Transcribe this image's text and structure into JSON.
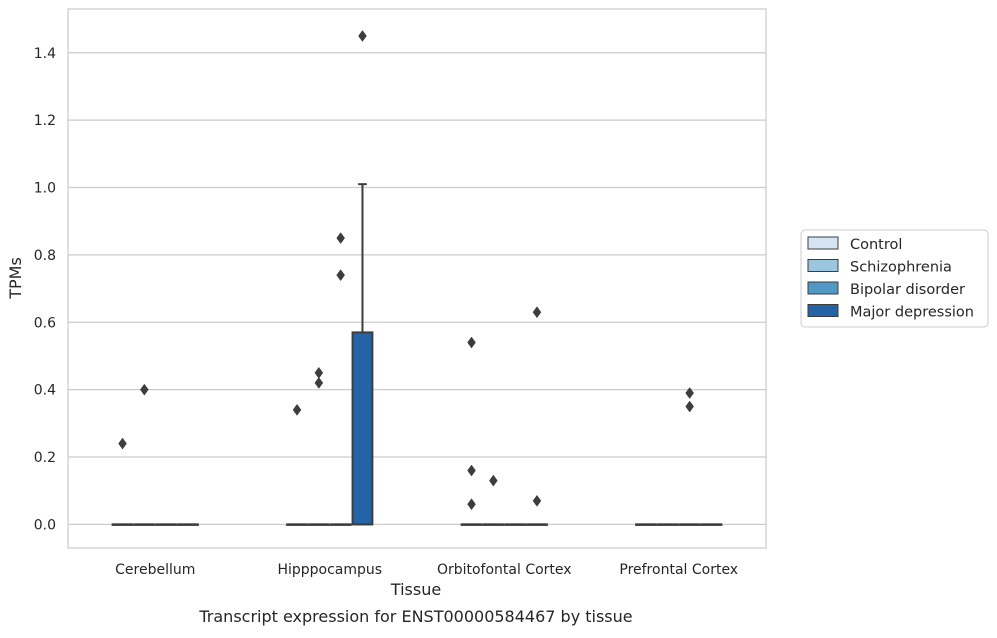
{
  "chart_data": {
    "type": "box",
    "xlabel": "Tissue",
    "ylabel": "TPMs",
    "caption": "Transcript expression for ENST00000584467 by tissue",
    "categories": [
      "Cerebellum",
      "Hipppocampus",
      "Orbitofontal Cortex",
      "Prefrontal Cortex"
    ],
    "ylim": [
      -0.07,
      1.53
    ],
    "yticks": [
      0.0,
      0.2,
      0.4,
      0.6,
      0.8,
      1.0,
      1.2,
      1.4
    ],
    "ytick_labels": [
      "0.0",
      "0.2",
      "0.4",
      "0.6",
      "0.8",
      "1.0",
      "1.2",
      "1.4"
    ],
    "grid": "horizontal",
    "legend_placement": "right",
    "series": [
      {
        "name": "Control",
        "color": "#d4e4f3",
        "boxes": [
          {
            "category": "Cerebellum",
            "q1": 0,
            "median": 0,
            "q3": 0,
            "whisker_low": 0,
            "whisker_high": 0,
            "outliers": [
              0.24
            ]
          },
          {
            "category": "Hipppocampus",
            "q1": 0,
            "median": 0,
            "q3": 0,
            "whisker_low": 0,
            "whisker_high": 0,
            "outliers": [
              0.34
            ]
          },
          {
            "category": "Orbitofontal Cortex",
            "q1": 0,
            "median": 0,
            "q3": 0,
            "whisker_low": 0,
            "whisker_high": 0,
            "outliers": [
              0.54,
              0.16,
              0.06
            ]
          },
          {
            "category": "Prefrontal Cortex",
            "q1": 0,
            "median": 0,
            "q3": 0,
            "whisker_low": 0,
            "whisker_high": 0,
            "outliers": []
          }
        ]
      },
      {
        "name": "Schizophrenia",
        "color": "#9ac6df",
        "boxes": [
          {
            "category": "Cerebellum",
            "q1": 0,
            "median": 0,
            "q3": 0,
            "whisker_low": 0,
            "whisker_high": 0,
            "outliers": [
              0.4
            ]
          },
          {
            "category": "Hipppocampus",
            "q1": 0,
            "median": 0,
            "q3": 0,
            "whisker_low": 0,
            "whisker_high": 0,
            "outliers": [
              0.45,
              0.42
            ]
          },
          {
            "category": "Orbitofontal Cortex",
            "q1": 0,
            "median": 0,
            "q3": 0,
            "whisker_low": 0,
            "whisker_high": 0,
            "outliers": [
              0.13
            ]
          },
          {
            "category": "Prefrontal Cortex",
            "q1": 0,
            "median": 0,
            "q3": 0,
            "whisker_low": 0,
            "whisker_high": 0,
            "outliers": []
          }
        ]
      },
      {
        "name": "Bipolar disorder",
        "color": "#5198c6",
        "boxes": [
          {
            "category": "Cerebellum",
            "q1": 0,
            "median": 0,
            "q3": 0,
            "whisker_low": 0,
            "whisker_high": 0,
            "outliers": []
          },
          {
            "category": "Hipppocampus",
            "q1": 0,
            "median": 0,
            "q3": 0,
            "whisker_low": 0,
            "whisker_high": 0,
            "outliers": [
              0.85,
              0.74
            ]
          },
          {
            "category": "Orbitofontal Cortex",
            "q1": 0,
            "median": 0,
            "q3": 0,
            "whisker_low": 0,
            "whisker_high": 0,
            "outliers": []
          },
          {
            "category": "Prefrontal Cortex",
            "q1": 0,
            "median": 0,
            "q3": 0,
            "whisker_low": 0,
            "whisker_high": 0,
            "outliers": [
              0.39,
              0.35
            ]
          }
        ]
      },
      {
        "name": "Major depression",
        "color": "#2463a6",
        "boxes": [
          {
            "category": "Cerebellum",
            "q1": 0,
            "median": 0,
            "q3": 0,
            "whisker_low": 0,
            "whisker_high": 0,
            "outliers": []
          },
          {
            "category": "Hipppocampus",
            "q1": 0,
            "median": 0,
            "q3": 0.57,
            "whisker_low": 0,
            "whisker_high": 1.01,
            "outliers": [
              1.45
            ]
          },
          {
            "category": "Orbitofontal Cortex",
            "q1": 0,
            "median": 0,
            "q3": 0,
            "whisker_low": 0,
            "whisker_high": 0,
            "outliers": [
              0.63,
              0.07
            ]
          },
          {
            "category": "Prefrontal Cortex",
            "q1": 0,
            "median": 0,
            "q3": 0,
            "whisker_low": 0,
            "whisker_high": 0,
            "outliers": []
          }
        ]
      }
    ]
  }
}
